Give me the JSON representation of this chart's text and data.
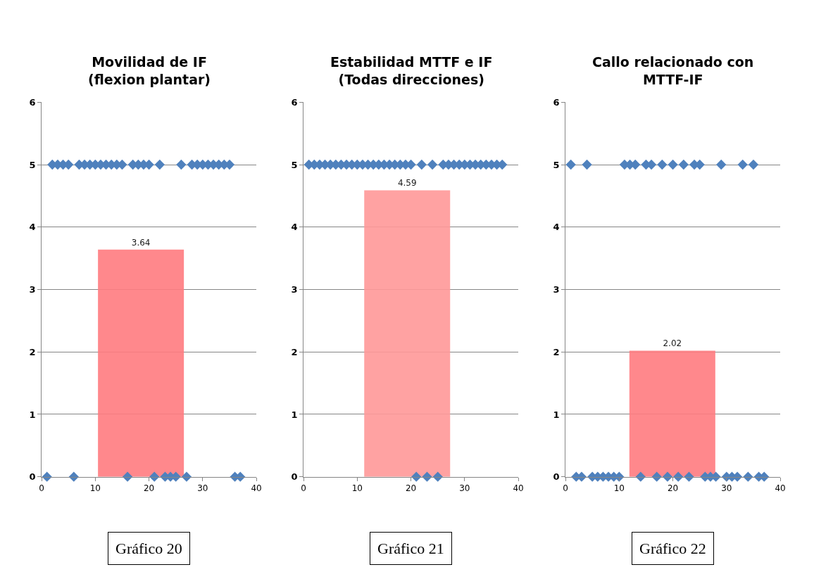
{
  "chart_data": [
    {
      "type": "scatter",
      "title": "Movilidad de IF\n(flexion plantar)",
      "annotations": [
        "Gráfico 20"
      ],
      "xlim": [
        0,
        40
      ],
      "xticks": [
        0,
        10,
        20,
        30,
        40
      ],
      "ylim": [
        0,
        6
      ],
      "yticks": [
        0,
        1,
        2,
        3,
        4,
        5,
        6
      ],
      "grid": "y",
      "marker": "diamond",
      "series": [
        {
          "color": "#4f81bd",
          "x": [
            1,
            2,
            3,
            4,
            5,
            6,
            7,
            8,
            9,
            10,
            11,
            12,
            13,
            14,
            15,
            16,
            17,
            18,
            19,
            20,
            21,
            22,
            23,
            24,
            25,
            26,
            27,
            28,
            29,
            30,
            31,
            32,
            33,
            34,
            35,
            36,
            37
          ],
          "values": [
            0,
            5,
            5,
            5,
            5,
            0,
            5,
            5,
            5,
            5,
            5,
            5,
            5,
            5,
            5,
            0,
            5,
            5,
            5,
            5,
            0,
            5,
            0,
            0,
            0,
            5,
            0,
            5,
            5,
            5,
            5,
            5,
            5,
            5,
            5,
            0,
            0
          ]
        },
        {
          "type": "bar",
          "color": "#ff7c80",
          "x": [
            18.5
          ],
          "values": [
            3.64
          ],
          "value_labels": [
            "3.64"
          ]
        }
      ]
    },
    {
      "type": "scatter",
      "title": "Estabilidad MTTF e IF\n(Todas direcciones)",
      "annotations": [
        "Gráfico 21"
      ],
      "xlim": [
        0,
        40
      ],
      "xticks": [
        0,
        10,
        20,
        30,
        40
      ],
      "ylim": [
        0,
        6
      ],
      "yticks": [
        0,
        1,
        2,
        3,
        4,
        5,
        6
      ],
      "grid": "y",
      "marker": "diamond",
      "series": [
        {
          "color": "#4f81bd",
          "x": [
            1,
            2,
            3,
            4,
            5,
            6,
            7,
            8,
            9,
            10,
            11,
            12,
            13,
            14,
            15,
            16,
            17,
            18,
            19,
            20,
            21,
            22,
            23,
            24,
            25,
            26,
            27,
            28,
            29,
            30,
            31,
            32,
            33,
            34,
            35,
            36,
            37
          ],
          "values": [
            5,
            5,
            5,
            5,
            5,
            5,
            5,
            5,
            5,
            5,
            5,
            5,
            5,
            5,
            5,
            5,
            5,
            5,
            5,
            5,
            0,
            5,
            0,
            5,
            0,
            5,
            5,
            5,
            5,
            5,
            5,
            5,
            5,
            5,
            5,
            5,
            5
          ]
        },
        {
          "type": "bar",
          "color": "#ff9999",
          "x": [
            19.3
          ],
          "values": [
            4.59
          ],
          "value_labels": [
            "4.59"
          ]
        }
      ]
    },
    {
      "type": "scatter",
      "title": "Callo relacionado con\nMTTF-IF",
      "annotations": [
        "Gráfico 22"
      ],
      "xlim": [
        0,
        40
      ],
      "xticks": [
        0,
        10,
        20,
        30,
        40
      ],
      "ylim": [
        0,
        6
      ],
      "yticks": [
        0,
        1,
        2,
        3,
        4,
        5,
        6
      ],
      "grid": "y",
      "marker": "diamond",
      "series": [
        {
          "color": "#4f81bd",
          "x": [
            1,
            2,
            3,
            4,
            5,
            6,
            7,
            8,
            9,
            10,
            11,
            12,
            13,
            14,
            15,
            16,
            17,
            18,
            19,
            20,
            21,
            22,
            23,
            24,
            25,
            26,
            27,
            28,
            29,
            30,
            31,
            32,
            33,
            34,
            35,
            36,
            37
          ],
          "values": [
            5,
            0,
            0,
            5,
            0,
            0,
            0,
            0,
            0,
            0,
            5,
            5,
            5,
            0,
            5,
            5,
            0,
            5,
            0,
            5,
            0,
            5,
            0,
            5,
            5,
            0,
            0,
            0,
            5,
            0,
            0,
            0,
            5,
            0,
            5,
            0,
            0
          ]
        },
        {
          "type": "bar",
          "color": "#ff7c80",
          "x": [
            19.9
          ],
          "values": [
            2.02
          ],
          "value_labels": [
            "2.02"
          ]
        }
      ]
    }
  ]
}
